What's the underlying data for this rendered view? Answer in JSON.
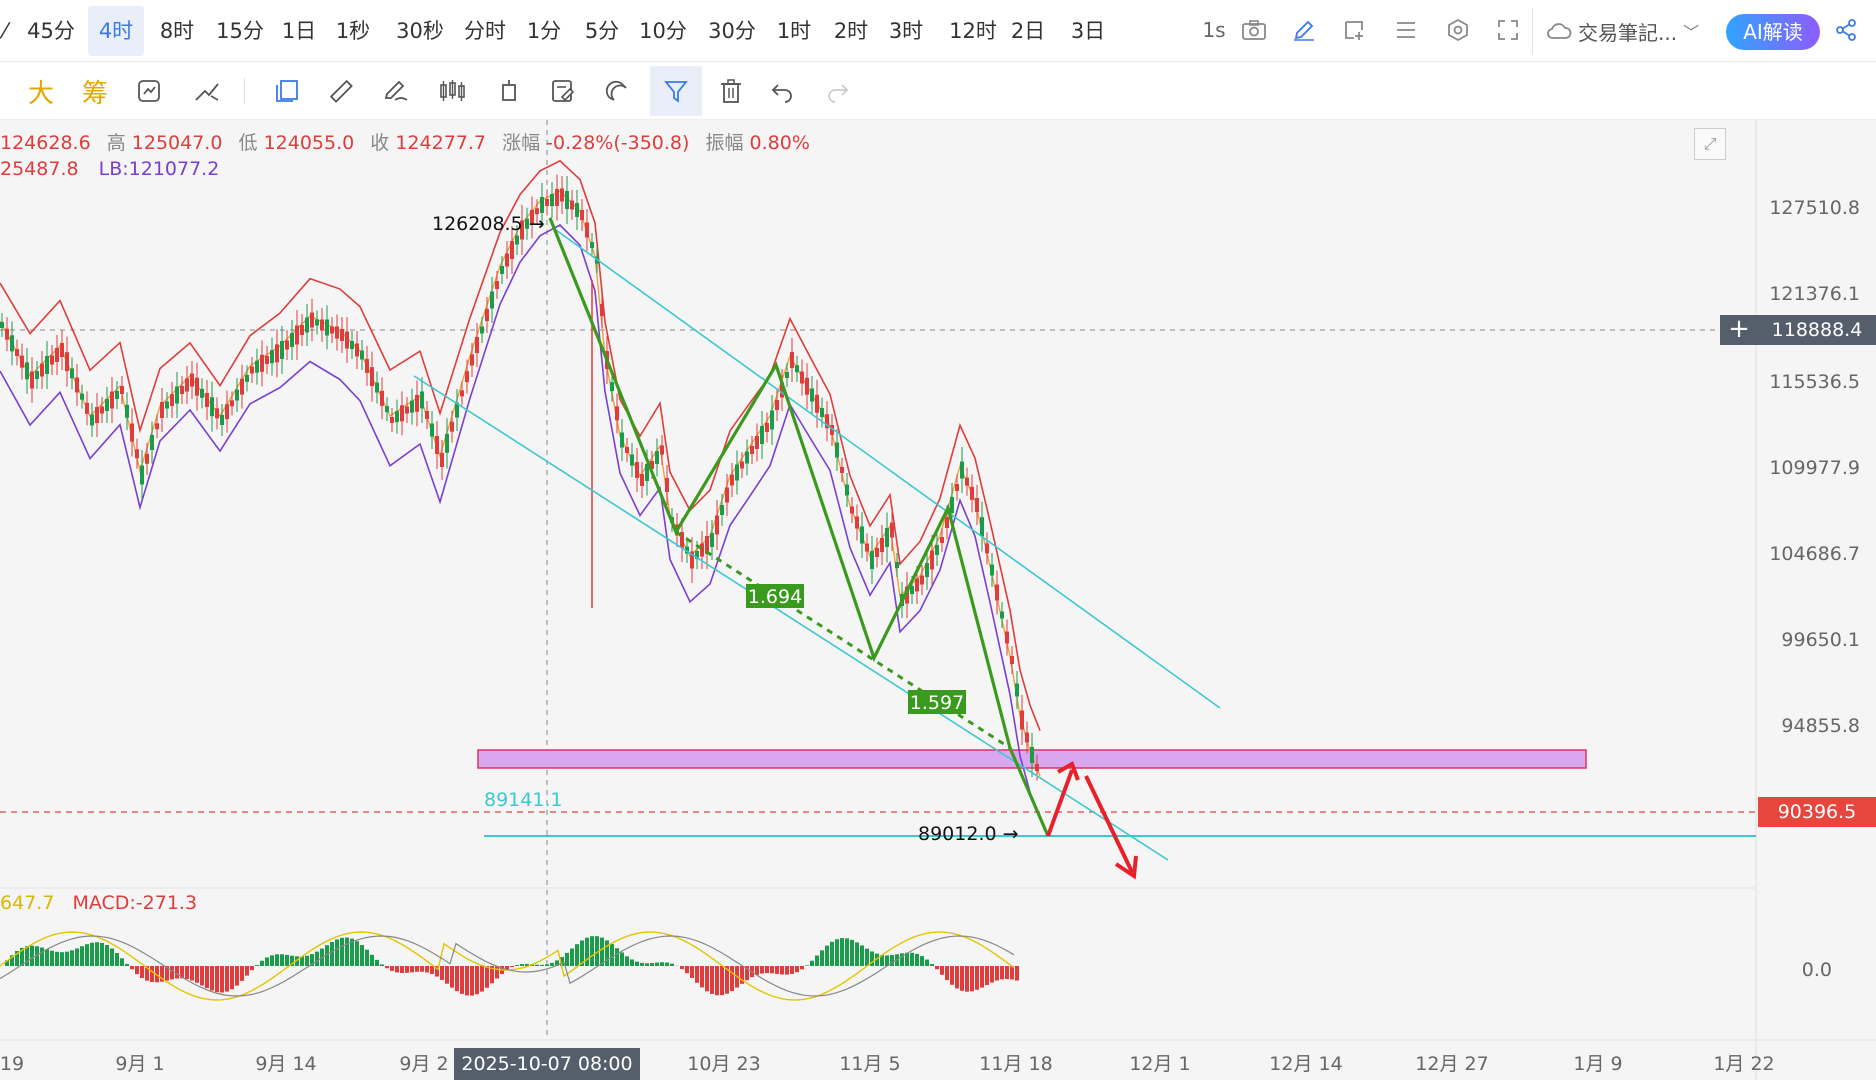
{
  "toolbar": {
    "timeframes": [
      "45分",
      "4时",
      "8时",
      "15分",
      "1日",
      "1秒",
      "30秒",
      "分时",
      "1分",
      "5分",
      "10分",
      "30分",
      "1时",
      "2时",
      "3时",
      "12时",
      "2日",
      "3日"
    ],
    "active_timeframe": "4时",
    "speed_label": "1s",
    "notes_label": "交易筆記...",
    "ai_label": "AI解读"
  },
  "draw_tools": {
    "left_labels": [
      "大",
      "筹"
    ]
  },
  "ohlc": {
    "open": "124628.6",
    "high_label": "高",
    "high": "125047.0",
    "low_label": "低",
    "low": "124055.0",
    "close_label": "收",
    "close": "124277.7",
    "change_label": "涨幅",
    "change": "-0.28%(-350.8)",
    "amplitude_label": "振幅",
    "amplitude": "0.80%"
  },
  "boll": {
    "ub": "25487.8",
    "lb": "LB:121077.2"
  },
  "macd": {
    "val1": "647.7",
    "macd": "MACD:-271.3",
    "zero": "0.0"
  },
  "price_axis": [
    "127510.8",
    "121376.1",
    "115536.5",
    "109977.9",
    "104686.7",
    "99650.1",
    "94855.8"
  ],
  "crosshair_price": "118888.4",
  "last_price": "90396.5",
  "annotations": {
    "high_mark": "126208.5 →",
    "low_mark": "89012.0 →",
    "level": "89141.1",
    "ratio1": "1.694",
    "ratio2": "1.597"
  },
  "time_axis": [
    "19",
    "9月 1",
    "9月 14",
    "9月 2",
    "10月 23",
    "11月 5",
    "11月 18",
    "12月 1",
    "12月 14",
    "12月 27",
    "1月 9",
    "1月 22"
  ],
  "crosshair_date": "2025-10-07 08:00",
  "colors": {
    "up": "#1a9c4a",
    "down": "#e03c3c",
    "channel": "#3cc8d0",
    "wave": "#3a9a1e",
    "zone_fill": "#d9a7f0",
    "zone_border": "#e03060",
    "boll_upper": "#e03c3c",
    "boll_mid": "#f0a040",
    "boll_lower": "#7a3fd0",
    "arrow": "#e8202a"
  }
}
